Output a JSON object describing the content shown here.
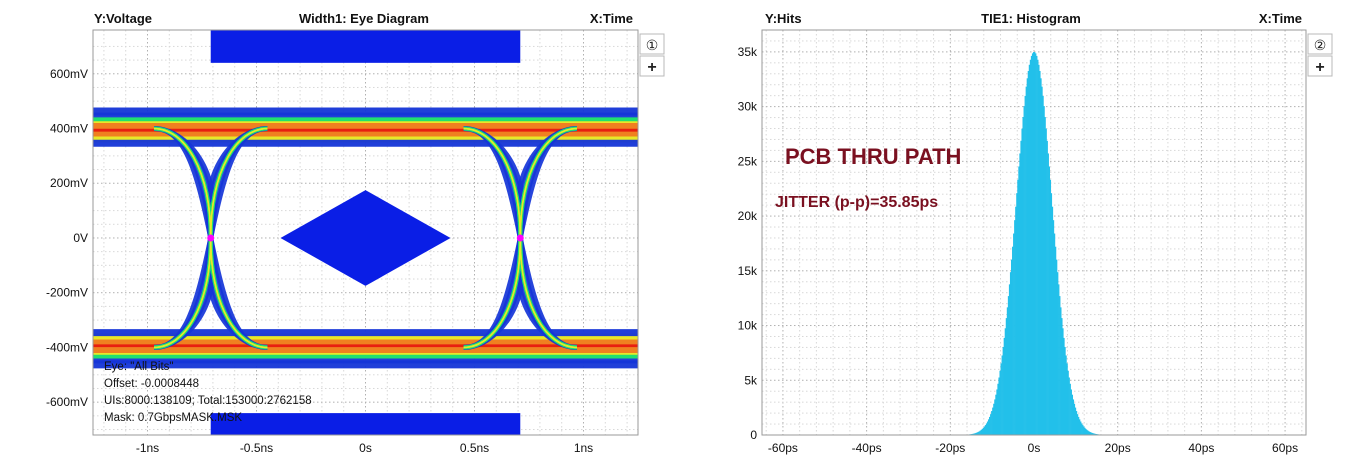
{
  "panel1": {
    "y_header": "Y:Voltage",
    "title": "Width1: Eye Diagram",
    "x_header": "X:Time",
    "channel_badge": "①",
    "plus_label": "+",
    "info_lines": [
      "Eye: \"All Bits\"",
      "Offset: -0.0008448",
      "UIs:8000:138109; Total:153000:2762158",
      "Mask: 0.7GbpsMASK.MSK"
    ]
  },
  "panel2": {
    "y_header": "Y:Hits",
    "title": "TIE1: Histogram",
    "x_header": "X:Time",
    "channel_badge": "②",
    "plus_label": "+",
    "annotation_title": "PCB THRU PATH",
    "annotation_jitter": "JITTER (p-p)=35.85ps"
  },
  "colors": {
    "mask": "#0a1ee6",
    "eye_outer": "#1535d8",
    "eye_green": "#20e070",
    "eye_yellow": "#e8e828",
    "eye_orange": "#f08020",
    "eye_red": "#e81e10",
    "crossing": "#ff00ff",
    "histogram": "#22c0ea",
    "annotation": "#7a1020",
    "grid": "#c4c4c4",
    "frame": "#9a9a9a"
  },
  "chart_data": [
    {
      "type": "eye-diagram",
      "title": "Width1: Eye Diagram",
      "ylabel": "Y:Voltage",
      "xlabel": "X:Time",
      "x_tick_labels": [
        "-1ns",
        "-0.5ns",
        "0s",
        "0.5ns",
        "1ns"
      ],
      "x_tick_values_ns": [
        -1,
        -0.5,
        0,
        0.5,
        1
      ],
      "y_tick_labels": [
        "600mV",
        "400mV",
        "200mV",
        "0V",
        "-200mV",
        "-400mV",
        "-600mV"
      ],
      "y_tick_values_mV": [
        600,
        400,
        200,
        0,
        -200,
        -400,
        -600
      ],
      "xlim_ns": [
        -1.25,
        1.25
      ],
      "ylim_mV": [
        -720,
        760
      ],
      "high_level_mV": 400,
      "low_level_mV": -400,
      "crossings_ns": [
        -0.71,
        0.71
      ],
      "crossing_level_mV": 0,
      "mask_diamond": {
        "x_ns": [
          -0.39,
          0.39
        ],
        "y_mV": [
          -175,
          175
        ]
      },
      "mask_top": {
        "x_ns": [
          -0.71,
          0.71
        ],
        "y_mV": [
          640,
          760
        ]
      },
      "mask_bottom": {
        "x_ns": [
          -0.71,
          0.71
        ],
        "y_mV": [
          -720,
          -640
        ]
      },
      "grid": true
    },
    {
      "type": "histogram",
      "title": "TIE1: Histogram",
      "ylabel": "Y:Hits",
      "xlabel": "X:Time",
      "x_tick_labels": [
        "-60ps",
        "-40ps",
        "-20ps",
        "0s",
        "20ps",
        "40ps",
        "60ps"
      ],
      "x_tick_values_ps": [
        -60,
        -40,
        -20,
        0,
        20,
        40,
        60
      ],
      "y_tick_labels": [
        "0",
        "5k",
        "10k",
        "15k",
        "20k",
        "25k",
        "30k",
        "35k"
      ],
      "y_tick_values": [
        0,
        5000,
        10000,
        15000,
        20000,
        25000,
        30000,
        35000
      ],
      "xlim_ps": [
        -65,
        65
      ],
      "ylim": [
        0,
        37000
      ],
      "center_ps": 0,
      "peak_hits": 35000,
      "sigma_ps": 4.3,
      "extent_ps": [
        -17.5,
        18.4
      ],
      "grid": true
    }
  ]
}
